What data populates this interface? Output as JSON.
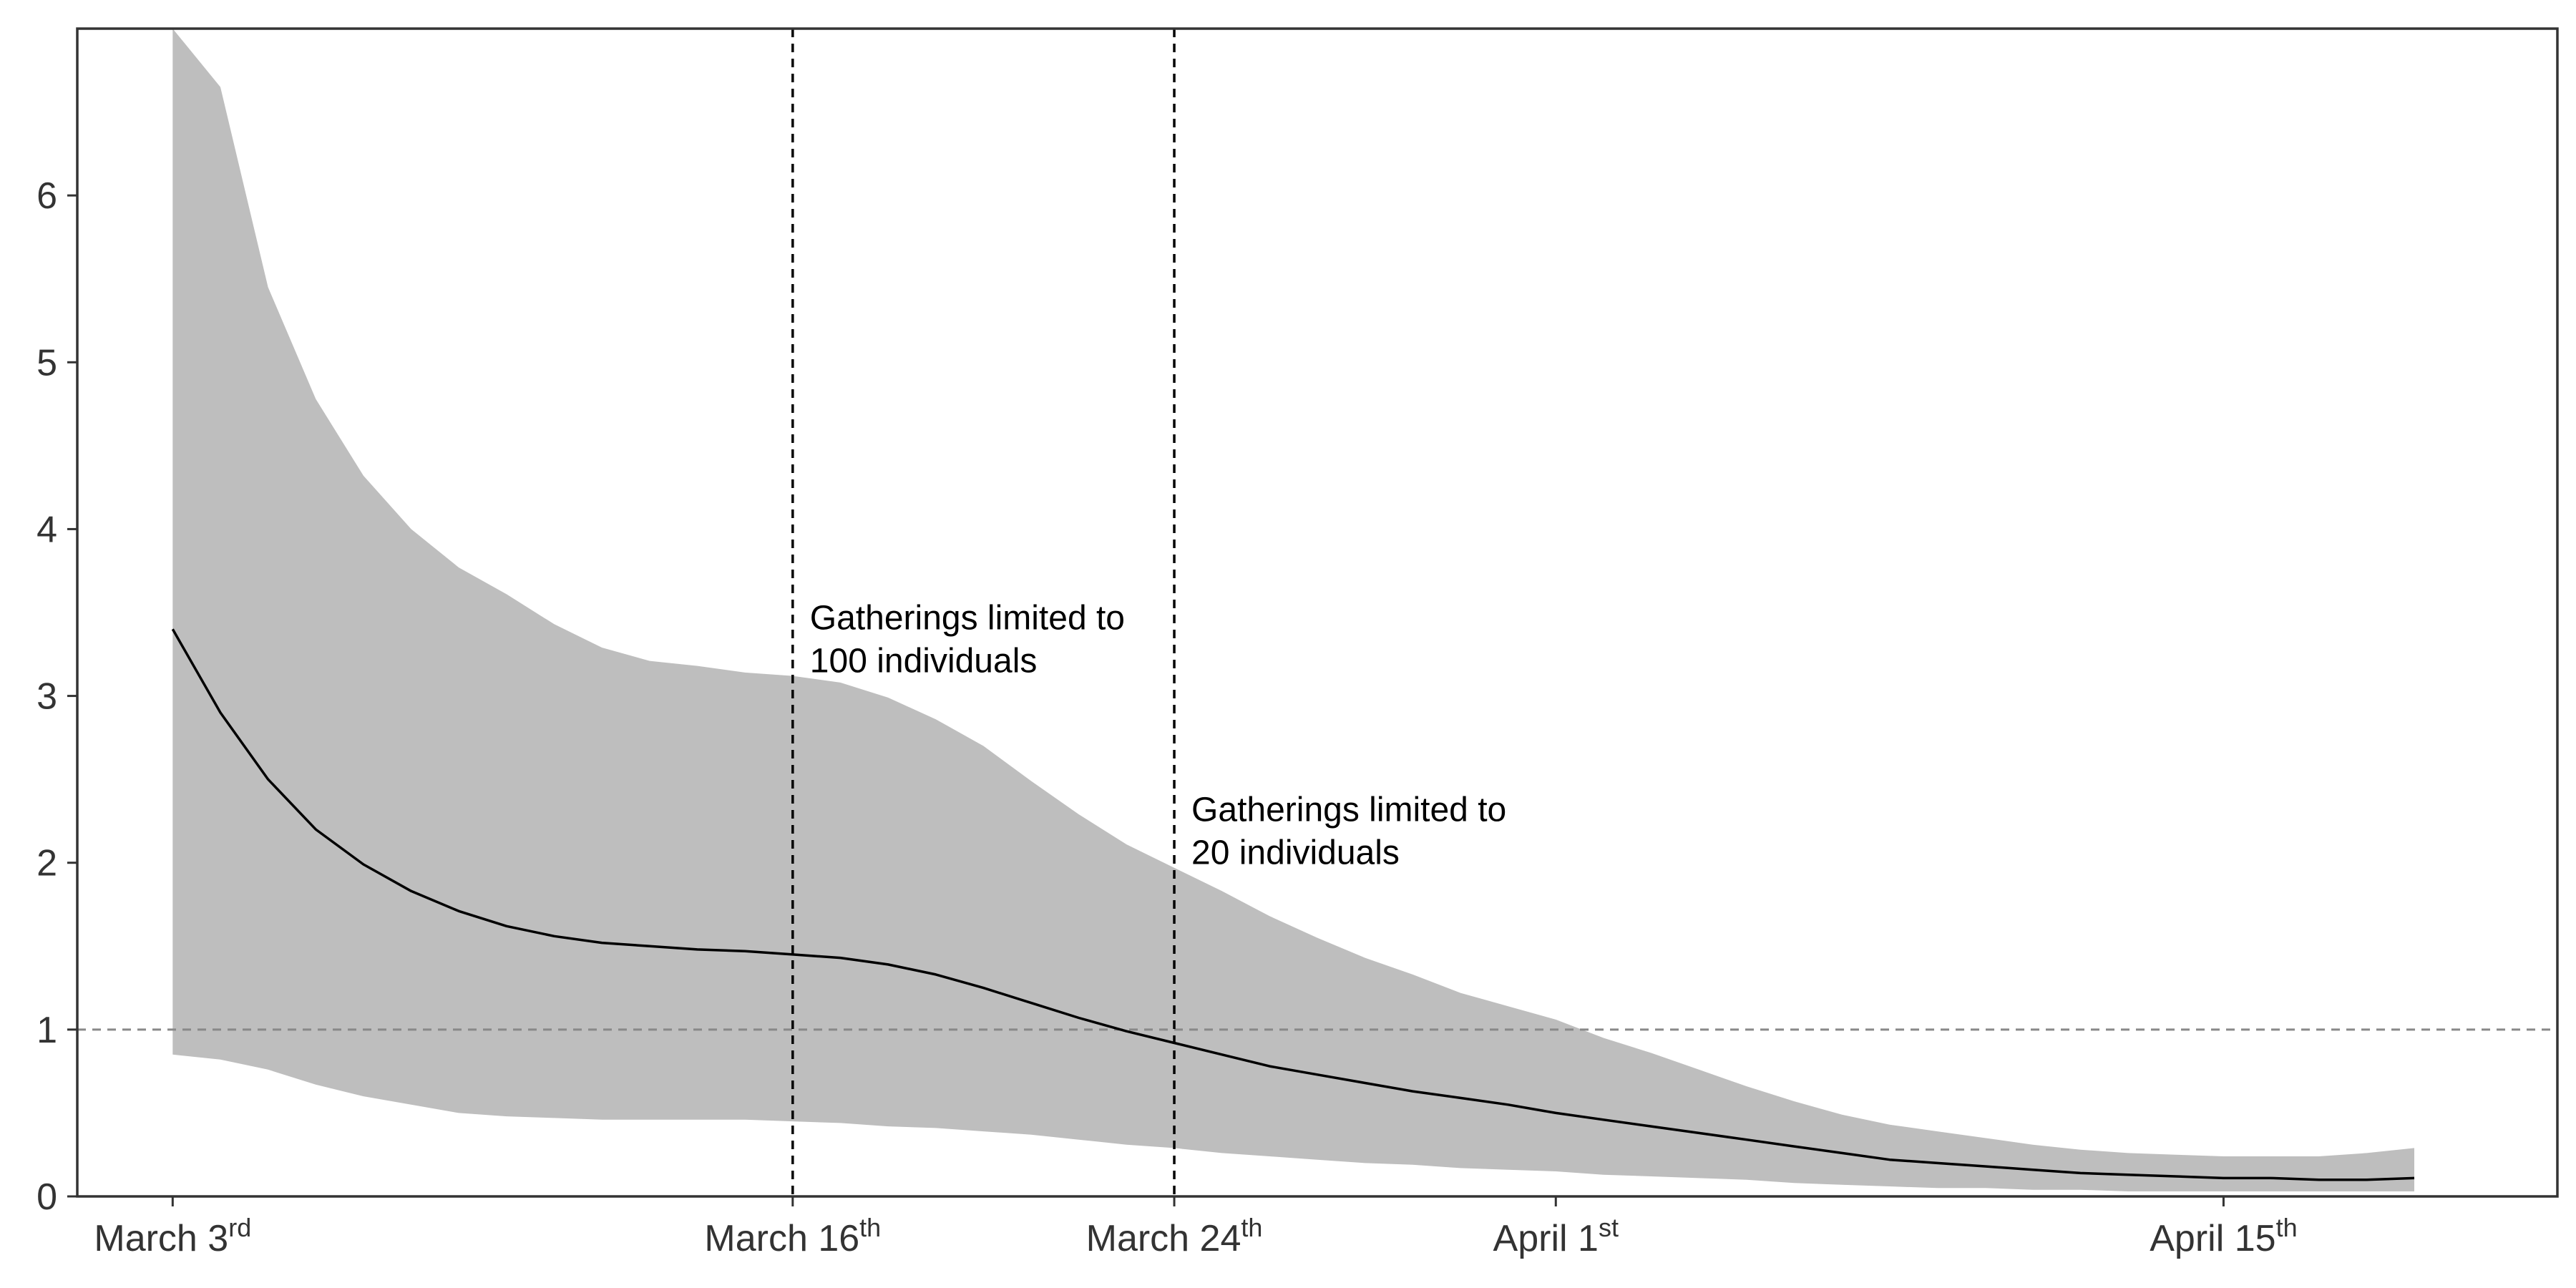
{
  "chart_data": {
    "type": "line",
    "x_type": "date",
    "xlim": [
      "2020-03-01",
      "2020-04-22"
    ],
    "ylim": [
      0,
      7
    ],
    "yticks": [
      0,
      1,
      2,
      3,
      4,
      5,
      6
    ],
    "xticks": [
      {
        "date": "2020-03-03",
        "label": "March 3",
        "sup": "rd"
      },
      {
        "date": "2020-03-16",
        "label": "March 16",
        "sup": "th"
      },
      {
        "date": "2020-03-24",
        "label": "March 24",
        "sup": "th"
      },
      {
        "date": "2020-04-01",
        "label": "April 1",
        "sup": "st"
      },
      {
        "date": "2020-04-15",
        "label": "April 15",
        "sup": "th"
      }
    ],
    "grid": false,
    "reference_line": {
      "y": 1,
      "style": "dashed",
      "color": "#888888"
    },
    "series": [
      {
        "style": "line",
        "color": "#000000",
        "x": [
          "2020-03-03",
          "2020-03-04",
          "2020-03-05",
          "2020-03-06",
          "2020-03-07",
          "2020-03-08",
          "2020-03-09",
          "2020-03-10",
          "2020-03-11",
          "2020-03-12",
          "2020-03-13",
          "2020-03-14",
          "2020-03-15",
          "2020-03-16",
          "2020-03-17",
          "2020-03-18",
          "2020-03-19",
          "2020-03-20",
          "2020-03-21",
          "2020-03-22",
          "2020-03-23",
          "2020-03-24",
          "2020-03-25",
          "2020-03-26",
          "2020-03-27",
          "2020-03-28",
          "2020-03-29",
          "2020-03-30",
          "2020-03-31",
          "2020-04-01",
          "2020-04-02",
          "2020-04-03",
          "2020-04-04",
          "2020-04-05",
          "2020-04-06",
          "2020-04-07",
          "2020-04-08",
          "2020-04-09",
          "2020-04-10",
          "2020-04-11",
          "2020-04-12",
          "2020-04-13",
          "2020-04-14",
          "2020-04-15",
          "2020-04-16",
          "2020-04-17",
          "2020-04-18",
          "2020-04-19"
        ],
        "y": [
          3.4,
          2.9,
          2.5,
          2.2,
          1.99,
          1.83,
          1.71,
          1.62,
          1.56,
          1.52,
          1.5,
          1.48,
          1.47,
          1.45,
          1.43,
          1.39,
          1.33,
          1.25,
          1.16,
          1.07,
          0.99,
          0.92,
          0.85,
          0.78,
          0.73,
          0.68,
          0.63,
          0.59,
          0.55,
          0.5,
          0.46,
          0.42,
          0.38,
          0.34,
          0.3,
          0.26,
          0.22,
          0.2,
          0.18,
          0.16,
          0.14,
          0.13,
          0.12,
          0.11,
          0.11,
          0.1,
          0.1,
          0.11
        ]
      },
      {
        "style": "band",
        "color": "#bebebe",
        "x": [
          "2020-03-03",
          "2020-03-04",
          "2020-03-05",
          "2020-03-06",
          "2020-03-07",
          "2020-03-08",
          "2020-03-09",
          "2020-03-10",
          "2020-03-11",
          "2020-03-12",
          "2020-03-13",
          "2020-03-14",
          "2020-03-15",
          "2020-03-16",
          "2020-03-17",
          "2020-03-18",
          "2020-03-19",
          "2020-03-20",
          "2020-03-21",
          "2020-03-22",
          "2020-03-23",
          "2020-03-24",
          "2020-03-25",
          "2020-03-26",
          "2020-03-27",
          "2020-03-28",
          "2020-03-29",
          "2020-03-30",
          "2020-03-31",
          "2020-04-01",
          "2020-04-02",
          "2020-04-03",
          "2020-04-04",
          "2020-04-05",
          "2020-04-06",
          "2020-04-07",
          "2020-04-08",
          "2020-04-09",
          "2020-04-10",
          "2020-04-11",
          "2020-04-12",
          "2020-04-13",
          "2020-04-14",
          "2020-04-15",
          "2020-04-16",
          "2020-04-17",
          "2020-04-18",
          "2020-04-19"
        ],
        "upper": [
          7.0,
          6.65,
          5.45,
          4.78,
          4.32,
          4.0,
          3.77,
          3.61,
          3.43,
          3.29,
          3.21,
          3.18,
          3.14,
          3.12,
          3.08,
          2.99,
          2.86,
          2.7,
          2.49,
          2.29,
          2.11,
          1.97,
          1.83,
          1.68,
          1.55,
          1.43,
          1.33,
          1.22,
          1.14,
          1.06,
          0.95,
          0.86,
          0.76,
          0.66,
          0.57,
          0.49,
          0.43,
          0.39,
          0.35,
          0.31,
          0.28,
          0.26,
          0.25,
          0.24,
          0.24,
          0.24,
          0.26,
          0.29
        ],
        "lower": [
          0.85,
          0.82,
          0.76,
          0.67,
          0.6,
          0.55,
          0.5,
          0.48,
          0.47,
          0.46,
          0.46,
          0.46,
          0.46,
          0.45,
          0.44,
          0.42,
          0.41,
          0.39,
          0.37,
          0.34,
          0.31,
          0.29,
          0.26,
          0.24,
          0.22,
          0.2,
          0.19,
          0.17,
          0.16,
          0.15,
          0.13,
          0.12,
          0.11,
          0.1,
          0.08,
          0.07,
          0.06,
          0.05,
          0.05,
          0.04,
          0.04,
          0.03,
          0.03,
          0.03,
          0.03,
          0.03,
          0.03,
          0.03
        ]
      }
    ],
    "vertical_lines": [
      {
        "date": "2020-03-16",
        "style": "dashed",
        "color": "#000000",
        "annotation": [
          "Gatherings limited to",
          "100 individuals"
        ],
        "annotation_y": 3.4
      },
      {
        "date": "2020-03-24",
        "style": "dashed",
        "color": "#000000",
        "annotation": [
          "Gatherings limited to",
          "20 individuals"
        ],
        "annotation_y": 2.25
      }
    ]
  }
}
